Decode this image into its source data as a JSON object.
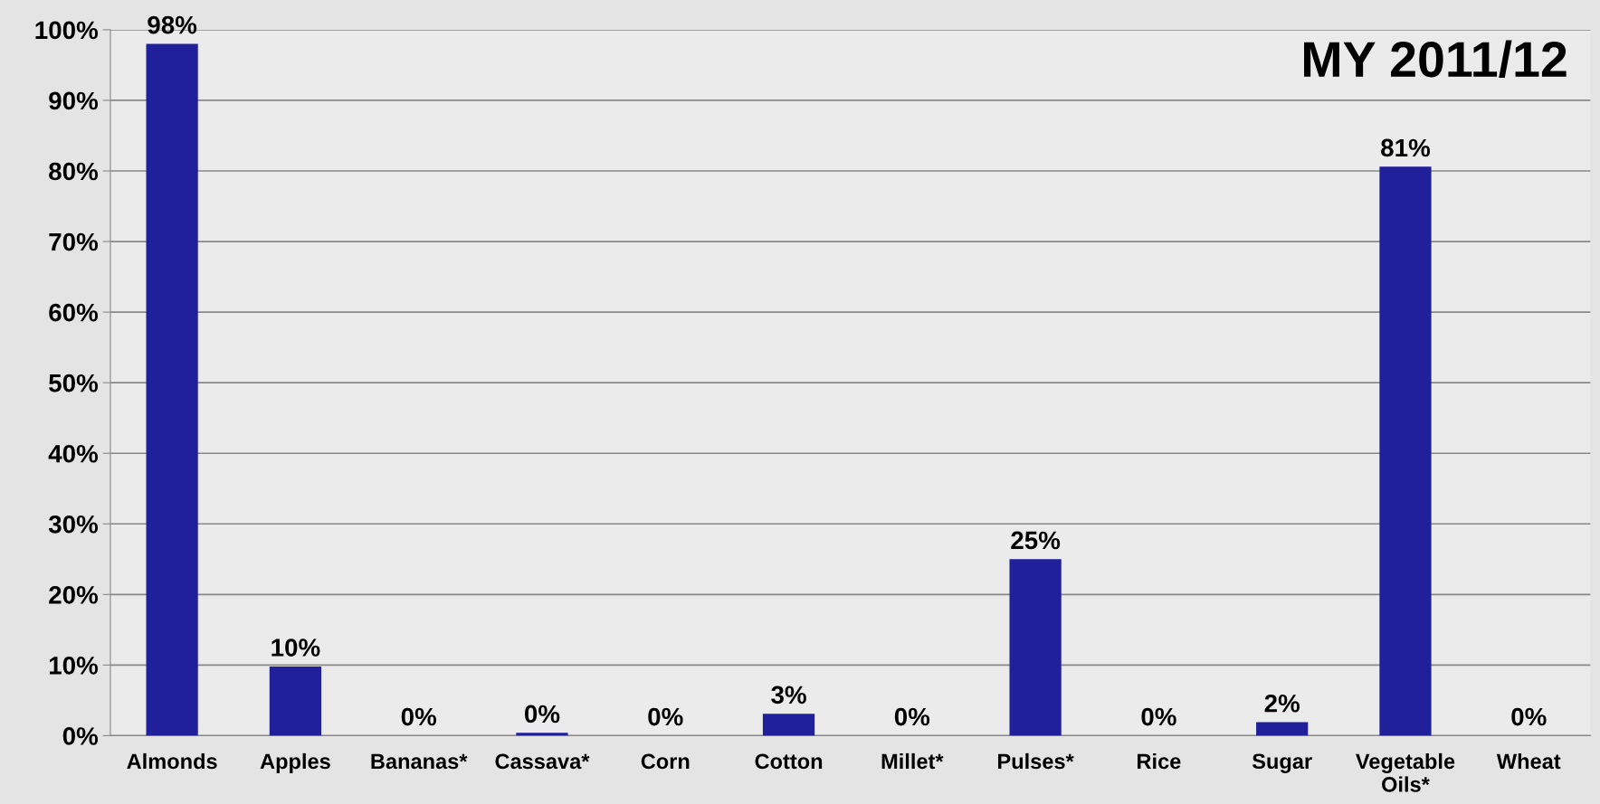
{
  "chart_data": {
    "type": "bar",
    "title": "MY 2011/12",
    "categories": [
      "Almonds",
      "Apples",
      "Bananas*",
      "Cassava*",
      "Corn",
      "Cotton",
      "Millet*",
      "Pulses*",
      "Rice",
      "Sugar",
      "Vegetable Oils*",
      "Wheat"
    ],
    "values": [
      98,
      9.8,
      0,
      0.4,
      0,
      3.1,
      0,
      25,
      0,
      1.9,
      80.6,
      0
    ],
    "value_labels": [
      "98%",
      "10%",
      "0%",
      "0%",
      "0%",
      "3%",
      "0%",
      "25%",
      "0%",
      "2%",
      "81%",
      "0%"
    ],
    "color": "#20209a",
    "ylim": [
      0,
      100
    ],
    "yticks": [
      {
        "value": 0,
        "label": "0%"
      },
      {
        "value": 10,
        "label": "10%"
      },
      {
        "value": 20,
        "label": "20%"
      },
      {
        "value": 30,
        "label": "30%"
      },
      {
        "value": 40,
        "label": "40%"
      },
      {
        "value": 50,
        "label": "50%"
      },
      {
        "value": 60,
        "label": "60%"
      },
      {
        "value": 70,
        "label": "70%"
      },
      {
        "value": 80,
        "label": "80%"
      },
      {
        "value": 90,
        "label": "90%"
      },
      {
        "value": 100,
        "label": "100%"
      }
    ],
    "grid": "y"
  }
}
